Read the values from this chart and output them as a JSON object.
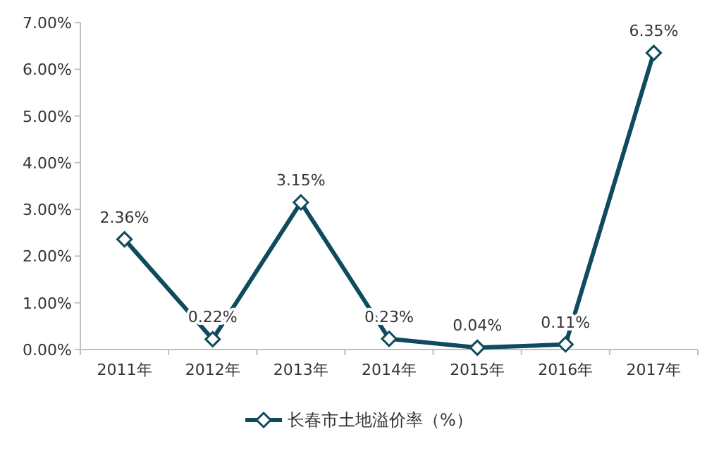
{
  "chart_data": {
    "type": "line",
    "categories": [
      "2011年",
      "2012年",
      "2013年",
      "2014年",
      "2015年",
      "2016年",
      "2017年"
    ],
    "series": [
      {
        "name": "长春市土地溢价率（%）",
        "color": "#0f4b5e",
        "values": [
          2.36,
          0.22,
          3.15,
          0.23,
          0.04,
          0.11,
          6.35
        ],
        "value_labels": [
          "2.36%",
          "0.22%",
          "3.15%",
          "0.23%",
          "0.04%",
          "0.11%",
          "6.35%"
        ]
      }
    ],
    "ylim": [
      0,
      7
    ],
    "yticks": [
      {
        "value": 0,
        "label": "0.00%"
      },
      {
        "value": 1,
        "label": "1.00%"
      },
      {
        "value": 2,
        "label": "2.00%"
      },
      {
        "value": 3,
        "label": "3.00%"
      },
      {
        "value": 4,
        "label": "4.00%"
      },
      {
        "value": 5,
        "label": "5.00%"
      },
      {
        "value": 6,
        "label": "6.00%"
      },
      {
        "value": 7,
        "label": "7.00%"
      }
    ],
    "marker": "diamond",
    "line_style": "solid",
    "grid": false,
    "legend": "bottom"
  }
}
